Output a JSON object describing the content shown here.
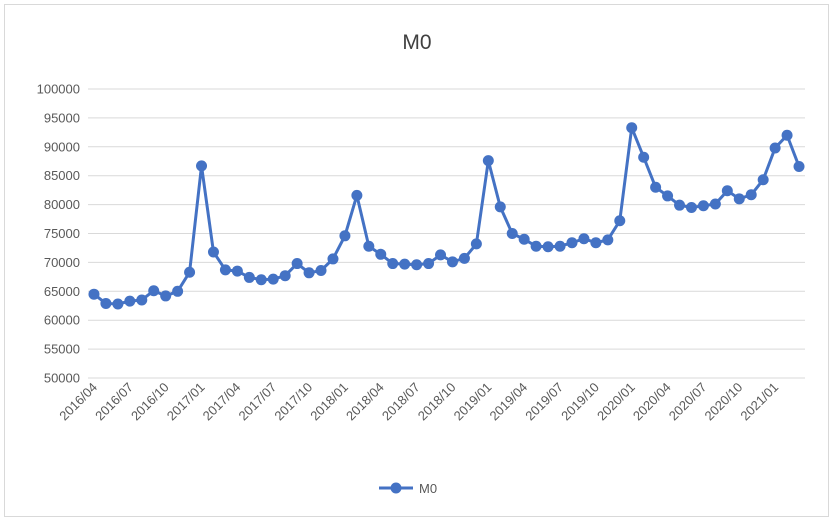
{
  "chart_data": {
    "type": "line",
    "title": "M0",
    "xlabel": "",
    "ylabel": "",
    "ylim": [
      50000,
      100000
    ],
    "yticks": [
      50000,
      55000,
      60000,
      65000,
      70000,
      75000,
      80000,
      85000,
      90000,
      95000,
      100000
    ],
    "grid": true,
    "legend_position": "bottom",
    "color": "#4472c4",
    "x": [
      "2016/04",
      "2016/05",
      "2016/06",
      "2016/07",
      "2016/08",
      "2016/09",
      "2016/10",
      "2016/11",
      "2016/12",
      "2017/01",
      "2017/02",
      "2017/03",
      "2017/04",
      "2017/05",
      "2017/06",
      "2017/07",
      "2017/08",
      "2017/09",
      "2017/10",
      "2017/11",
      "2017/12",
      "2018/01",
      "2018/02",
      "2018/03",
      "2018/04",
      "2018/05",
      "2018/06",
      "2018/07",
      "2018/08",
      "2018/09",
      "2018/10",
      "2018/11",
      "2018/12",
      "2019/01",
      "2019/02",
      "2019/03",
      "2019/04",
      "2019/05",
      "2019/06",
      "2019/07",
      "2019/08",
      "2019/09",
      "2019/10",
      "2019/11",
      "2019/12",
      "2020/01",
      "2020/02",
      "2020/03",
      "2020/04",
      "2020/05",
      "2020/06",
      "2020/07",
      "2020/08",
      "2020/09",
      "2020/10",
      "2020/11",
      "2020/12",
      "2021/01",
      "2021/02",
      "2021/03"
    ],
    "xtick_labels": [
      "2016/04",
      "2016/07",
      "2016/10",
      "2017/01",
      "2017/04",
      "2017/07",
      "2017/10",
      "2018/01",
      "2018/04",
      "2018/07",
      "2018/10",
      "2019/01",
      "2019/04",
      "2019/07",
      "2019/10",
      "2020/01",
      "2020/04",
      "2020/07",
      "2020/10",
      "2021/01"
    ],
    "series": [
      {
        "name": "M0",
        "values": [
          64500,
          62900,
          62800,
          63300,
          63500,
          65100,
          64200,
          65000,
          68300,
          86700,
          71800,
          68700,
          68500,
          67400,
          67000,
          67100,
          67700,
          69800,
          68200,
          68600,
          70600,
          74600,
          81600,
          72800,
          71400,
          69800,
          69700,
          69600,
          69800,
          71300,
          70100,
          70700,
          73200,
          87600,
          79600,
          75000,
          74000,
          72800,
          72700,
          72800,
          73400,
          74100,
          73400,
          73900,
          77200,
          93300,
          88200,
          83000,
          81500,
          79900,
          79500,
          79800,
          80100,
          82400,
          81000,
          81700,
          84300,
          89800,
          92000,
          86600
        ]
      }
    ]
  }
}
